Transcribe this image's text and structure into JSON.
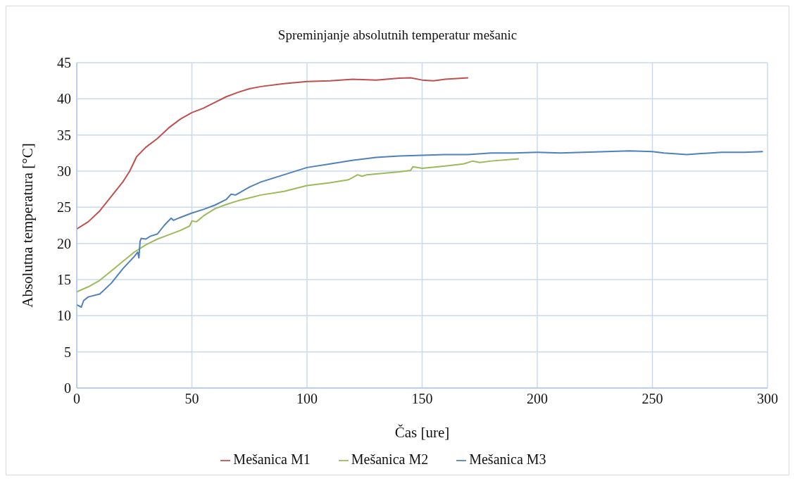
{
  "chart_data": {
    "type": "line",
    "title": "Spreminjanje absolutnih temperatur mešanic",
    "xlabel": "Čas [ure]",
    "ylabel": "Absolutna temperatura [°C]",
    "xlim": [
      0,
      300
    ],
    "xticks": [
      0,
      50,
      100,
      150,
      200,
      250,
      300
    ],
    "ylim": [
      0,
      45
    ],
    "yticks": [
      0,
      5,
      10,
      15,
      20,
      25,
      30,
      35,
      40,
      45
    ],
    "grid": true,
    "legend": "bottom",
    "marker": "none",
    "line_style": "solid",
    "series": [
      {
        "name": "Mešanica M1",
        "color": "#c0504d",
        "x": [
          0,
          5,
          10,
          15,
          20,
          23,
          26,
          30,
          35,
          40,
          45,
          50,
          55,
          60,
          65,
          70,
          75,
          80,
          90,
          100,
          110,
          120,
          130,
          140,
          145,
          150,
          155,
          160,
          170
        ],
        "values": [
          22,
          23,
          24.5,
          26.5,
          28.5,
          30,
          32,
          33.3,
          34.5,
          36,
          37.2,
          38.1,
          38.7,
          39.5,
          40.3,
          40.9,
          41.4,
          41.7,
          42.1,
          42.4,
          42.5,
          42.7,
          42.6,
          42.85,
          42.9,
          42.6,
          42.5,
          42.7,
          42.9
        ]
      },
      {
        "name": "Mešanica M2",
        "color": "#9bbb59",
        "x": [
          0,
          5,
          10,
          15,
          20,
          25,
          30,
          35,
          40,
          45,
          49,
          50,
          52,
          55,
          60,
          65,
          70,
          75,
          80,
          90,
          100,
          110,
          118,
          122,
          124,
          126,
          130,
          140,
          145,
          146,
          150,
          160,
          168,
          172,
          175,
          180,
          192
        ],
        "values": [
          13.3,
          14,
          14.9,
          16.2,
          17.5,
          18.8,
          19.8,
          20.6,
          21.2,
          21.8,
          22.4,
          23.1,
          23,
          23.8,
          24.8,
          25.4,
          25.9,
          26.3,
          26.7,
          27.2,
          28,
          28.4,
          28.8,
          29.5,
          29.3,
          29.5,
          29.6,
          29.9,
          30.1,
          30.6,
          30.4,
          30.7,
          31,
          31.4,
          31.2,
          31.4,
          31.7
        ]
      },
      {
        "name": "Mešanica M3",
        "color": "#4f81bd",
        "x": [
          0,
          2,
          3,
          5,
          10,
          15,
          20,
          25,
          26.5,
          27,
          27.5,
          28,
          30,
          32,
          35,
          38,
          41,
          42,
          45,
          50,
          55,
          60,
          65,
          67,
          69,
          75,
          80,
          90,
          100,
          110,
          120,
          130,
          140,
          150,
          160,
          170,
          180,
          190,
          200,
          210,
          220,
          230,
          240,
          250,
          255,
          265,
          270,
          280,
          290,
          298
        ],
        "values": [
          11.5,
          11.2,
          12.1,
          12.6,
          13,
          14.5,
          16.5,
          18.2,
          18.8,
          18,
          20.3,
          20.7,
          20.6,
          21,
          21.3,
          22.5,
          23.5,
          23.2,
          23.6,
          24.2,
          24.7,
          25.3,
          26.1,
          26.8,
          26.7,
          27.8,
          28.5,
          29.5,
          30.5,
          31,
          31.5,
          31.9,
          32.1,
          32.2,
          32.3,
          32.3,
          32.5,
          32.5,
          32.6,
          32.5,
          32.6,
          32.7,
          32.8,
          32.7,
          32.5,
          32.3,
          32.4,
          32.6,
          32.6,
          32.7
        ]
      }
    ]
  }
}
